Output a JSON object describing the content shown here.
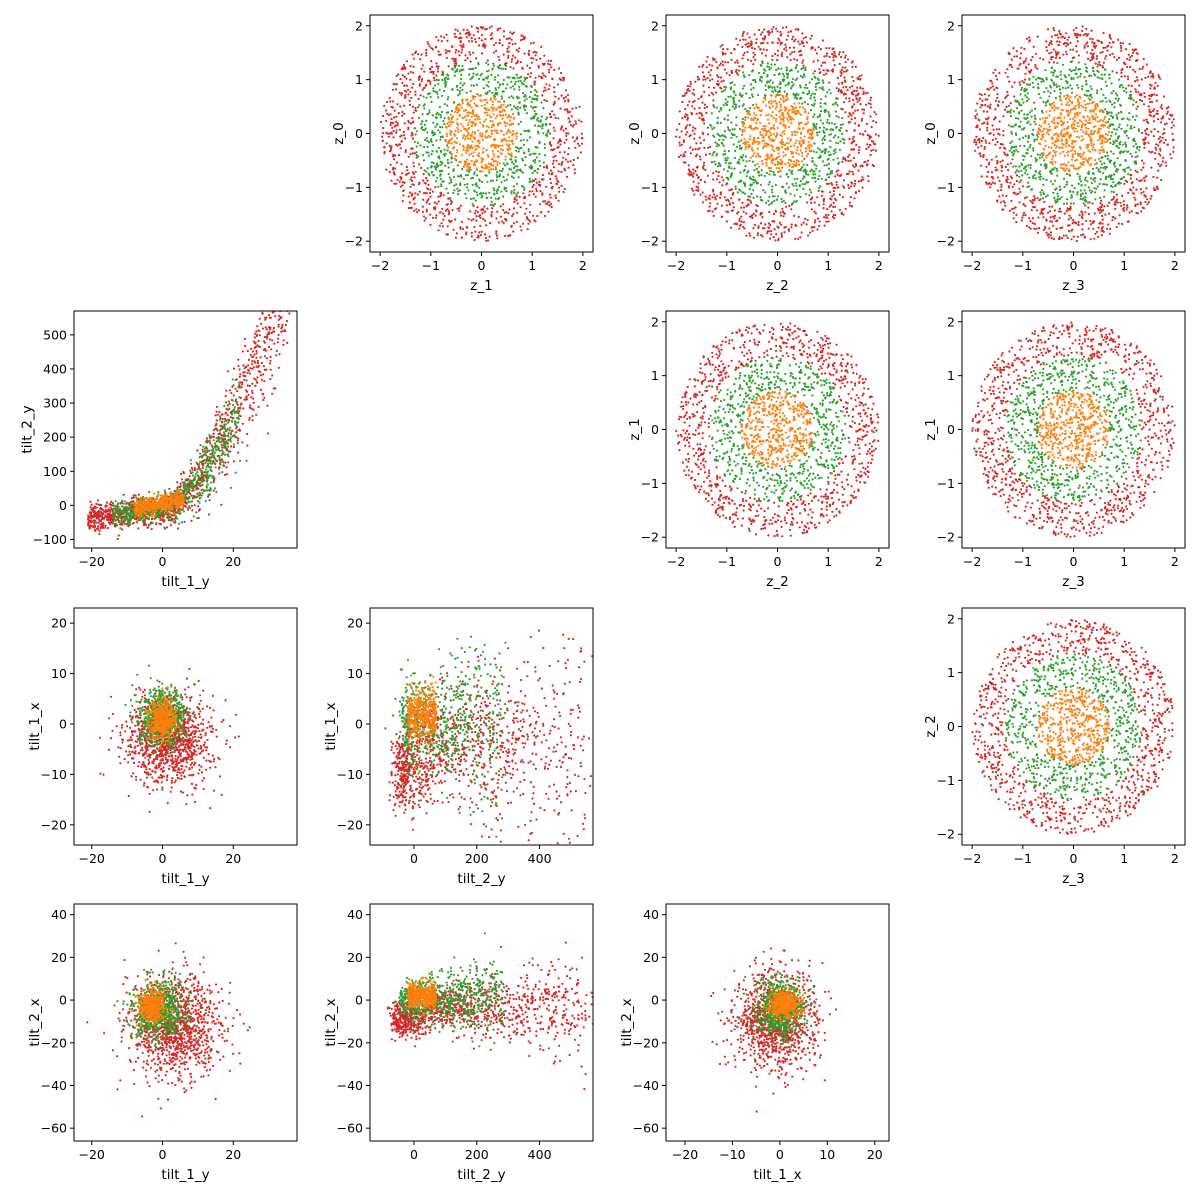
{
  "colors": {
    "outer": "#d62728",
    "middle": "#2ca02c",
    "inner": "#ff7f0e"
  },
  "chart_data": [
    {
      "type": "scatter",
      "xlabel": "z_1",
      "ylabel": "z_0",
      "xlim": [
        -2.2,
        2.2
      ],
      "ylim": [
        -2.2,
        2.2
      ],
      "xticks": [
        -2,
        -1,
        0,
        1,
        2
      ],
      "yticks": [
        -2,
        -1,
        0,
        1,
        2
      ],
      "tick_labels_x": [
        "−2",
        "−1",
        "0",
        "1",
        "2"
      ],
      "tick_labels_y": [
        "−2",
        "−1",
        "0",
        "1",
        "2"
      ],
      "series": [
        {
          "color": "#d62728",
          "shape": "ring",
          "r_min": 1.35,
          "r_max": 2.0,
          "center": [
            0,
            0
          ],
          "count": 900
        },
        {
          "color": "#2ca02c",
          "shape": "ring",
          "r_min": 0.7,
          "r_max": 1.35,
          "center": [
            0,
            0
          ],
          "count": 650
        },
        {
          "color": "#ff7f0e",
          "shape": "disk",
          "r_max": 0.72,
          "center": [
            0,
            0
          ],
          "count": 450
        }
      ],
      "grid": false
    },
    {
      "type": "scatter",
      "xlabel": "z_2",
      "ylabel": "z_0",
      "xlim": [
        -2.2,
        2.2
      ],
      "ylim": [
        -2.2,
        2.2
      ],
      "xticks": [
        -2,
        -1,
        0,
        1,
        2
      ],
      "yticks": [
        -2,
        -1,
        0,
        1,
        2
      ],
      "tick_labels_x": [
        "−2",
        "−1",
        "0",
        "1",
        "2"
      ],
      "tick_labels_y": [
        "−2",
        "−1",
        "0",
        "1",
        "2"
      ],
      "series": [
        {
          "color": "#d62728",
          "shape": "ring",
          "r_min": 1.35,
          "r_max": 2.0,
          "center": [
            0,
            0
          ],
          "count": 900
        },
        {
          "color": "#2ca02c",
          "shape": "ring",
          "r_min": 0.7,
          "r_max": 1.35,
          "center": [
            0,
            0
          ],
          "count": 650
        },
        {
          "color": "#ff7f0e",
          "shape": "disk",
          "r_max": 0.72,
          "center": [
            0,
            0
          ],
          "count": 450
        }
      ],
      "grid": false
    },
    {
      "type": "scatter",
      "xlabel": "z_3",
      "ylabel": "z_0",
      "xlim": [
        -2.2,
        2.2
      ],
      "ylim": [
        -2.2,
        2.2
      ],
      "xticks": [
        -2,
        -1,
        0,
        1,
        2
      ],
      "yticks": [
        -2,
        -1,
        0,
        1,
        2
      ],
      "tick_labels_x": [
        "−2",
        "−1",
        "0",
        "1",
        "2"
      ],
      "tick_labels_y": [
        "−2",
        "−1",
        "0",
        "1",
        "2"
      ],
      "series": [
        {
          "color": "#d62728",
          "shape": "ring",
          "r_min": 1.35,
          "r_max": 2.0,
          "center": [
            0,
            0
          ],
          "count": 900
        },
        {
          "color": "#2ca02c",
          "shape": "ring",
          "r_min": 0.7,
          "r_max": 1.35,
          "center": [
            0,
            0
          ],
          "count": 650
        },
        {
          "color": "#ff7f0e",
          "shape": "disk",
          "r_max": 0.72,
          "center": [
            0,
            0
          ],
          "count": 450
        }
      ],
      "grid": false
    },
    {
      "type": "scatter",
      "xlabel": "tilt_1_y",
      "ylabel": "tilt_2_y",
      "xlim": [
        -25,
        38
      ],
      "ylim": [
        -125,
        570
      ],
      "xticks": [
        -20,
        0,
        20
      ],
      "yticks": [
        -100,
        0,
        100,
        200,
        300,
        400,
        500
      ],
      "tick_labels_x": [
        "−20",
        "0",
        "20"
      ],
      "tick_labels_y": [
        "−100",
        "0",
        "100",
        "200",
        "300",
        "400",
        "500"
      ],
      "series": [
        {
          "color": "#d62728",
          "shape": "curve",
          "count": 1300
        },
        {
          "color": "#2ca02c",
          "shape": "curve_mid",
          "count": 650
        },
        {
          "color": "#ff7f0e",
          "shape": "curve_inner",
          "count": 450
        }
      ],
      "grid": false
    },
    {
      "type": "scatter",
      "xlabel": "z_2",
      "ylabel": "z_1",
      "xlim": [
        -2.2,
        2.2
      ],
      "ylim": [
        -2.2,
        2.2
      ],
      "xticks": [
        -2,
        -1,
        0,
        1,
        2
      ],
      "yticks": [
        -2,
        -1,
        0,
        1,
        2
      ],
      "tick_labels_x": [
        "−2",
        "−1",
        "0",
        "1",
        "2"
      ],
      "tick_labels_y": [
        "−2",
        "−1",
        "0",
        "1",
        "2"
      ],
      "series": [
        {
          "color": "#d62728",
          "shape": "ring",
          "r_min": 1.35,
          "r_max": 2.0,
          "center": [
            0,
            0
          ],
          "count": 900
        },
        {
          "color": "#2ca02c",
          "shape": "ring",
          "r_min": 0.7,
          "r_max": 1.35,
          "center": [
            0,
            0
          ],
          "count": 650
        },
        {
          "color": "#ff7f0e",
          "shape": "disk",
          "r_max": 0.72,
          "center": [
            0,
            0
          ],
          "count": 450
        }
      ],
      "grid": false
    },
    {
      "type": "scatter",
      "xlabel": "z_3",
      "ylabel": "z_1",
      "xlim": [
        -2.2,
        2.2
      ],
      "ylim": [
        -2.2,
        2.2
      ],
      "xticks": [
        -2,
        -1,
        0,
        1,
        2
      ],
      "yticks": [
        -2,
        -1,
        0,
        1,
        2
      ],
      "tick_labels_x": [
        "−2",
        "−1",
        "0",
        "1",
        "2"
      ],
      "tick_labels_y": [
        "−2",
        "−1",
        "0",
        "1",
        "2"
      ],
      "series": [
        {
          "color": "#d62728",
          "shape": "ring",
          "r_min": 1.35,
          "r_max": 2.0,
          "center": [
            0,
            0
          ],
          "count": 900
        },
        {
          "color": "#2ca02c",
          "shape": "ring",
          "r_min": 0.7,
          "r_max": 1.35,
          "center": [
            0,
            0
          ],
          "count": 650
        },
        {
          "color": "#ff7f0e",
          "shape": "disk",
          "r_max": 0.72,
          "center": [
            0,
            0
          ],
          "count": 450
        }
      ],
      "grid": false
    },
    {
      "type": "scatter",
      "xlabel": "tilt_1_y",
      "ylabel": "tilt_1_x",
      "xlim": [
        -25,
        38
      ],
      "ylim": [
        -24,
        23
      ],
      "xticks": [
        -20,
        0,
        20
      ],
      "yticks": [
        -20,
        -10,
        0,
        10,
        20
      ],
      "tick_labels_x": [
        "−20",
        "0",
        "20"
      ],
      "tick_labels_y": [
        "−20",
        "−10",
        "0",
        "10",
        "20"
      ],
      "series": [
        {
          "color": "#d62728",
          "shape": "blob",
          "center": [
            2,
            -3
          ],
          "spread": [
            11,
            8
          ],
          "count": 1100
        },
        {
          "color": "#2ca02c",
          "shape": "blob",
          "center": [
            0,
            1
          ],
          "spread": [
            6,
            5
          ],
          "count": 650
        },
        {
          "color": "#ff7f0e",
          "shape": "blob",
          "center": [
            0,
            1
          ],
          "spread": [
            3.5,
            3.5
          ],
          "count": 450
        }
      ],
      "grid": false
    },
    {
      "type": "scatter",
      "xlabel": "tilt_2_y",
      "ylabel": "tilt_1_x",
      "xlim": [
        -140,
        570
      ],
      "ylim": [
        -24,
        23
      ],
      "xticks": [
        0,
        200,
        400
      ],
      "yticks": [
        -20,
        -10,
        0,
        10,
        20
      ],
      "tick_labels_x": [
        "0",
        "200",
        "400"
      ],
      "tick_labels_y": [
        "−20",
        "−10",
        "0",
        "10",
        "20"
      ],
      "series": [
        {
          "color": "#d62728",
          "shape": "fan",
          "count": 1100
        },
        {
          "color": "#2ca02c",
          "shape": "fan_mid",
          "count": 650
        },
        {
          "color": "#ff7f0e",
          "shape": "fan_inner",
          "count": 450
        }
      ],
      "grid": false
    },
    {
      "type": "scatter",
      "xlabel": "z_3",
      "ylabel": "z_2",
      "xlim": [
        -2.2,
        2.2
      ],
      "ylim": [
        -2.2,
        2.2
      ],
      "xticks": [
        -2,
        -1,
        0,
        1,
        2
      ],
      "yticks": [
        -2,
        -1,
        0,
        1,
        2
      ],
      "tick_labels_x": [
        "−2",
        "−1",
        "0",
        "1",
        "2"
      ],
      "tick_labels_y": [
        "−2",
        "−1",
        "0",
        "1",
        "2"
      ],
      "series": [
        {
          "color": "#d62728",
          "shape": "ring",
          "r_min": 1.35,
          "r_max": 2.0,
          "center": [
            0,
            0
          ],
          "count": 900
        },
        {
          "color": "#2ca02c",
          "shape": "ring",
          "r_min": 0.7,
          "r_max": 1.35,
          "center": [
            0,
            0
          ],
          "count": 650
        },
        {
          "color": "#ff7f0e",
          "shape": "disk",
          "r_max": 0.72,
          "center": [
            0,
            0
          ],
          "count": 450
        }
      ],
      "grid": false
    },
    {
      "type": "scatter",
      "xlabel": "tilt_1_y",
      "ylabel": "tilt_2_x",
      "xlim": [
        -25,
        38
      ],
      "ylim": [
        -66,
        45
      ],
      "xticks": [
        -20,
        0,
        20
      ],
      "yticks": [
        -60,
        -40,
        -20,
        0,
        20,
        40
      ],
      "tick_labels_x": [
        "−20",
        "0",
        "20"
      ],
      "tick_labels_y": [
        "−60",
        "−40",
        "−20",
        "0",
        "20",
        "40"
      ],
      "series": [
        {
          "color": "#d62728",
          "shape": "blob",
          "center": [
            4,
            -12
          ],
          "spread": [
            12,
            22
          ],
          "count": 1100
        },
        {
          "color": "#2ca02c",
          "shape": "blob",
          "center": [
            -1,
            -5
          ],
          "spread": [
            7,
            12
          ],
          "count": 650
        },
        {
          "color": "#ff7f0e",
          "shape": "blob",
          "center": [
            -3,
            -3
          ],
          "spread": [
            3.5,
            7
          ],
          "count": 450
        }
      ],
      "grid": false
    },
    {
      "type": "scatter",
      "xlabel": "tilt_2_y",
      "ylabel": "tilt_2_x",
      "xlim": [
        -140,
        570
      ],
      "ylim": [
        -66,
        45
      ],
      "xticks": [
        0,
        200,
        400
      ],
      "yticks": [
        -60,
        -40,
        -20,
        0,
        20,
        40
      ],
      "tick_labels_x": [
        "0",
        "200",
        "400"
      ],
      "tick_labels_y": [
        "−60",
        "−40",
        "−20",
        "0",
        "20",
        "40"
      ],
      "series": [
        {
          "color": "#d62728",
          "shape": "fan",
          "count": 1100
        },
        {
          "color": "#2ca02c",
          "shape": "fan_mid",
          "count": 650
        },
        {
          "color": "#ff7f0e",
          "shape": "fan_inner",
          "count": 450
        }
      ],
      "grid": false
    },
    {
      "type": "scatter",
      "xlabel": "tilt_1_x",
      "ylabel": "tilt_2_x",
      "xlim": [
        -24,
        23
      ],
      "ylim": [
        -66,
        45
      ],
      "xticks": [
        -20,
        -10,
        0,
        10,
        20
      ],
      "yticks": [
        -60,
        -40,
        -20,
        0,
        20,
        40
      ],
      "tick_labels_x": [
        "−20",
        "−10",
        "0",
        "10",
        "20"
      ],
      "tick_labels_y": [
        "−60",
        "−40",
        "−20",
        "0",
        "20",
        "40"
      ],
      "series": [
        {
          "color": "#d62728",
          "shape": "blob",
          "center": [
            -1,
            -10
          ],
          "spread": [
            8,
            20
          ],
          "count": 1100
        },
        {
          "color": "#2ca02c",
          "shape": "blob",
          "center": [
            0,
            -4
          ],
          "spread": [
            5,
            12
          ],
          "count": 650
        },
        {
          "color": "#ff7f0e",
          "shape": "blob",
          "center": [
            1,
            -2
          ],
          "spread": [
            3,
            6
          ],
          "count": 450
        }
      ],
      "grid": false
    }
  ]
}
